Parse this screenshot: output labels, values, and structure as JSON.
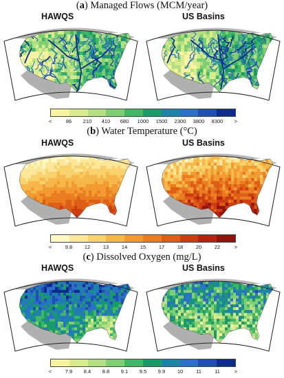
{
  "panels": [
    {
      "letter": "a",
      "title": "Managed Flows (MCM/year)",
      "left_label": "HAWQS",
      "right_label": "US Basins",
      "palette": [
        "#f7f3a3",
        "#d8ec8e",
        "#b3de82",
        "#7fce74",
        "#3fb767",
        "#1a9a68",
        "#1b84a8",
        "#2b6fc8",
        "#1f4fb4",
        "#0d2b8c"
      ],
      "left_style": "streams",
      "right_style": "streams",
      "tick_labels": [
        "<",
        "86",
        "210",
        "410",
        "680",
        "1000",
        "1500",
        "2300",
        "3800",
        "8300",
        ">"
      ]
    },
    {
      "letter": "b",
      "title": "Water Temperature (°C)",
      "left_label": "HAWQS",
      "right_label": "US Basins",
      "palette": [
        "#fdf8c4",
        "#fbe699",
        "#f9d26e",
        "#f7b84b",
        "#f29b32",
        "#ea7d22",
        "#de5d17",
        "#cc3d12",
        "#b3230f",
        "#8f140c"
      ],
      "left_style": "smooth",
      "right_style": "patchy",
      "tick_labels": [
        "<",
        "9.8",
        "12",
        "13",
        "14",
        "15",
        "17",
        "18",
        "20",
        "22",
        ">"
      ]
    },
    {
      "letter": "c",
      "title": "Dissolved Oxygen (mg/L)",
      "left_label": "HAWQS",
      "right_label": "US Basins",
      "palette": [
        "#f7f3a3",
        "#d8ec8e",
        "#b3de82",
        "#7fce74",
        "#3fb767",
        "#1a9a68",
        "#1b84a8",
        "#2b6fc8",
        "#1f4fb4",
        "#0d2b8c"
      ],
      "left_style": "dark",
      "right_style": "mixed",
      "tick_labels": [
        "<",
        "7.9",
        "8.4",
        "8.8",
        "9.1",
        "9.5",
        "9.9",
        "10",
        "11",
        "11",
        ">"
      ]
    }
  ]
}
